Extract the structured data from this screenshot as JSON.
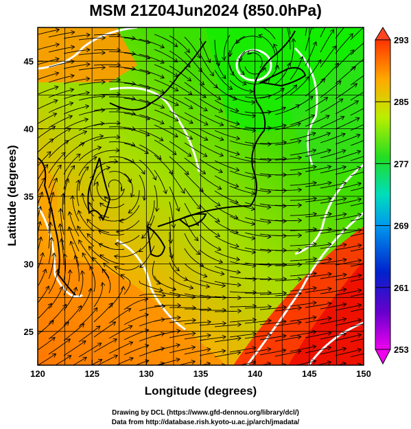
{
  "title": "MSM 21Z04Jun2024 (850.0hPa)",
  "axes": {
    "xlabel": "Longitude (degrees)",
    "ylabel": "Latitude  (degrees)",
    "xticks": [
      "120",
      "125",
      "130",
      "135",
      "140",
      "145",
      "150"
    ],
    "yticks": [
      "25",
      "30",
      "35",
      "40",
      "45"
    ]
  },
  "colorbar": {
    "labels": [
      "293",
      "285",
      "277",
      "269",
      "261",
      "253"
    ],
    "min": 253,
    "max": 293
  },
  "map_extent": {
    "lon": [
      120,
      150
    ],
    "lat": [
      22.5,
      47.5
    ]
  },
  "grid": true,
  "colors": {
    "warm": "#ff3300",
    "orange": "#ff9900",
    "yellow": "#d4e600",
    "green": "#33dd00",
    "cyan": "#00cccc",
    "blue": "#0033cc",
    "magenta": "#dd00dd"
  },
  "credits": {
    "line1": "Drawing by DCL (https://www.gfd-dennou.org/library/dcl/)",
    "line2": "Data from http://database.rish.kyoto-u.ac.jp/arch/jmadata/"
  }
}
